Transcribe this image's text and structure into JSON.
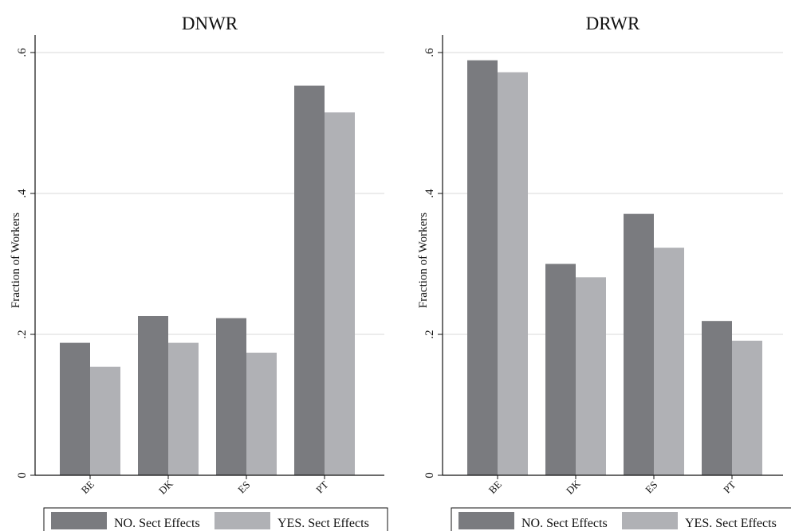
{
  "figure": {
    "colors": {
      "no_sect": "#7a7b7f",
      "yes_sect": "#b0b1b5",
      "grid": "#d9d9d9",
      "axis": "#111111"
    }
  },
  "chart_data": [
    {
      "type": "bar",
      "title": "DNWR",
      "ylabel": "Fraction of Workers",
      "xlabel": "",
      "categories": [
        "BE",
        "DK",
        "ES",
        "PT"
      ],
      "ylim": [
        0,
        0.6
      ],
      "yticks": [
        0,
        0.2,
        0.4,
        0.6
      ],
      "ytick_labels": [
        "0",
        ".2",
        ".4",
        ".6"
      ],
      "grid": true,
      "legend": "bottom",
      "series": [
        {
          "name": "NO. Sect Effects",
          "color": "#7a7b7f",
          "values": [
            0.188,
            0.226,
            0.223,
            0.553
          ]
        },
        {
          "name": "YES. Sect Effects",
          "color": "#b0b1b5",
          "values": [
            0.154,
            0.188,
            0.174,
            0.515
          ]
        }
      ]
    },
    {
      "type": "bar",
      "title": "DRWR",
      "ylabel": "Fraction of Workers",
      "xlabel": "",
      "categories": [
        "BE",
        "DK",
        "ES",
        "PT"
      ],
      "ylim": [
        0,
        0.6
      ],
      "yticks": [
        0,
        0.2,
        0.4,
        0.6
      ],
      "ytick_labels": [
        "0",
        ".2",
        ".4",
        ".6"
      ],
      "grid": true,
      "legend": "bottom",
      "series": [
        {
          "name": "NO. Sect Effects",
          "color": "#7a7b7f",
          "values": [
            0.589,
            0.3,
            0.371,
            0.219
          ]
        },
        {
          "name": "YES. Sect Effects",
          "color": "#b0b1b5",
          "values": [
            0.572,
            0.281,
            0.323,
            0.191
          ]
        }
      ]
    }
  ]
}
